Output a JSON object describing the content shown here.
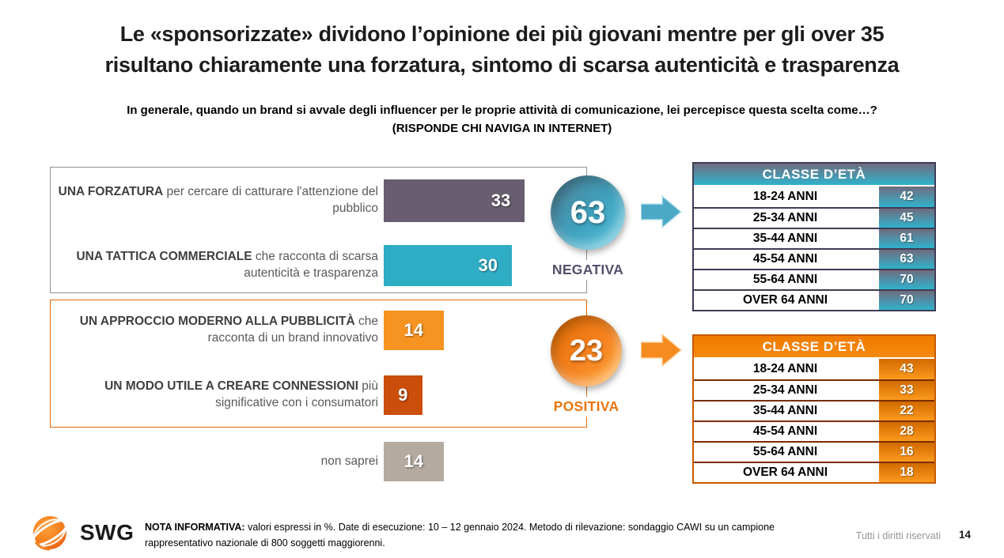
{
  "title_line1": "Le «sponsorizzate» dividono l’opinione dei più giovani mentre per gli over 35",
  "title_line2": "risultano chiaramente una forzatura, sintomo di scarsa autenticità e trasparenza",
  "subtitle_line1": "In generale, quando un brand si avvale degli influencer per le proprie attività di comunicazione, lei percepisce questa scelta come…?",
  "subtitle_line2": "(RISPONDE CHI NAVIGA IN INTERNET)",
  "bars": [
    {
      "bold": "UNA FORZATURA",
      "rest": " per cercare di catturare l'attenzione del pubblico",
      "value": 33,
      "color": "#685e70"
    },
    {
      "bold": "UNA TATTICA COMMERCIALE",
      "rest": " che racconta di scarsa autenticità e trasparenza",
      "value": 30,
      "color": "#2fadc4"
    },
    {
      "bold": "UN APPROCCIO MODERNO ALLA PUBBLICITÀ",
      "rest": " che racconta di un brand innovativo",
      "value": 14,
      "color": "#f79421"
    },
    {
      "bold": "UN MODO UTILE A CREARE CONNESSIONI",
      "rest": " più significative con i consumatori",
      "value": 9,
      "color": "#cb4e0b"
    },
    {
      "bold": "",
      "rest": "non saprei",
      "value": 14,
      "color": "#b4aaa0"
    }
  ],
  "summary": {
    "negativa": {
      "value": "63",
      "label": "NEGATIVA",
      "color": "#56506b",
      "circle_color": "#3fa3c0"
    },
    "positiva": {
      "value": "23",
      "label": "POSITIVA",
      "color": "#e97510",
      "circle_color": "#f58220"
    }
  },
  "tables": [
    {
      "header": "CLASSE D’ETÀ",
      "theme": "teal",
      "rows": [
        {
          "label": "18-24 ANNI",
          "value": "42"
        },
        {
          "label": "25-34 ANNI",
          "value": "45"
        },
        {
          "label": "35-44 ANNI",
          "value": "61"
        },
        {
          "label": "45-54 ANNI",
          "value": "63"
        },
        {
          "label": "55-64 ANNI",
          "value": "70"
        },
        {
          "label": "OVER 64 ANNI",
          "value": "70"
        }
      ]
    },
    {
      "header": "CLASSE D’ETÀ",
      "theme": "orange",
      "rows": [
        {
          "label": "18-24 ANNI",
          "value": "43"
        },
        {
          "label": "25-34 ANNI",
          "value": "33"
        },
        {
          "label": "35-44 ANNI",
          "value": "22"
        },
        {
          "label": "45-54 ANNI",
          "value": "28"
        },
        {
          "label": "55-64 ANNI",
          "value": "16"
        },
        {
          "label": "OVER 64 ANNI",
          "value": "18"
        }
      ]
    }
  ],
  "footer": {
    "logo_text": "SWG",
    "note_bold": "NOTA INFORMATIVA:",
    "note_rest": " valori espressi in %. Date di esecuzione: 10 – 12 gennaio 2024. Metodo di rilevazione: sondaggio CAWI su un campione rappresentativo nazionale di 800 soggetti maggiorenni.",
    "rights": "Tutti i diritti riservati",
    "page": "14"
  },
  "chart_data": [
    {
      "type": "bar",
      "title": "Percezione della scelta dei brand di avvalersi di influencer (valori in %)",
      "categories": [
        "UNA FORZATURA per cercare di catturare l'attenzione del pubblico",
        "UNA TATTICA COMMERCIALE che racconta di scarsa autenticità e trasparenza",
        "UN APPROCCIO MODERNO ALLA PUBBLICITÀ che racconta di un brand innovativo",
        "UN MODO UTILE A CREARE CONNESSIONI più significative con i consumatori",
        "non saprei"
      ],
      "values": [
        33,
        30,
        14,
        9,
        14
      ],
      "annotations": [
        {
          "label": "NEGATIVA",
          "value": 63
        },
        {
          "label": "POSITIVA",
          "value": 23
        }
      ],
      "xlabel": "",
      "ylabel": "",
      "xlim": [
        0,
        40
      ],
      "grid": false,
      "orientation": "horizontal"
    },
    {
      "type": "table",
      "title": "CLASSE D’ETÀ — NEGATIVA",
      "categories": [
        "18-24 ANNI",
        "25-34 ANNI",
        "35-44 ANNI",
        "45-54 ANNI",
        "55-64 ANNI",
        "OVER 64 ANNI"
      ],
      "values": [
        42,
        45,
        61,
        63,
        70,
        70
      ]
    },
    {
      "type": "table",
      "title": "CLASSE D’ETÀ — POSITIVA",
      "categories": [
        "18-24 ANNI",
        "25-34 ANNI",
        "35-44 ANNI",
        "45-54 ANNI",
        "55-64 ANNI",
        "OVER 64 ANNI"
      ],
      "values": [
        43,
        33,
        22,
        28,
        16,
        18
      ]
    }
  ]
}
